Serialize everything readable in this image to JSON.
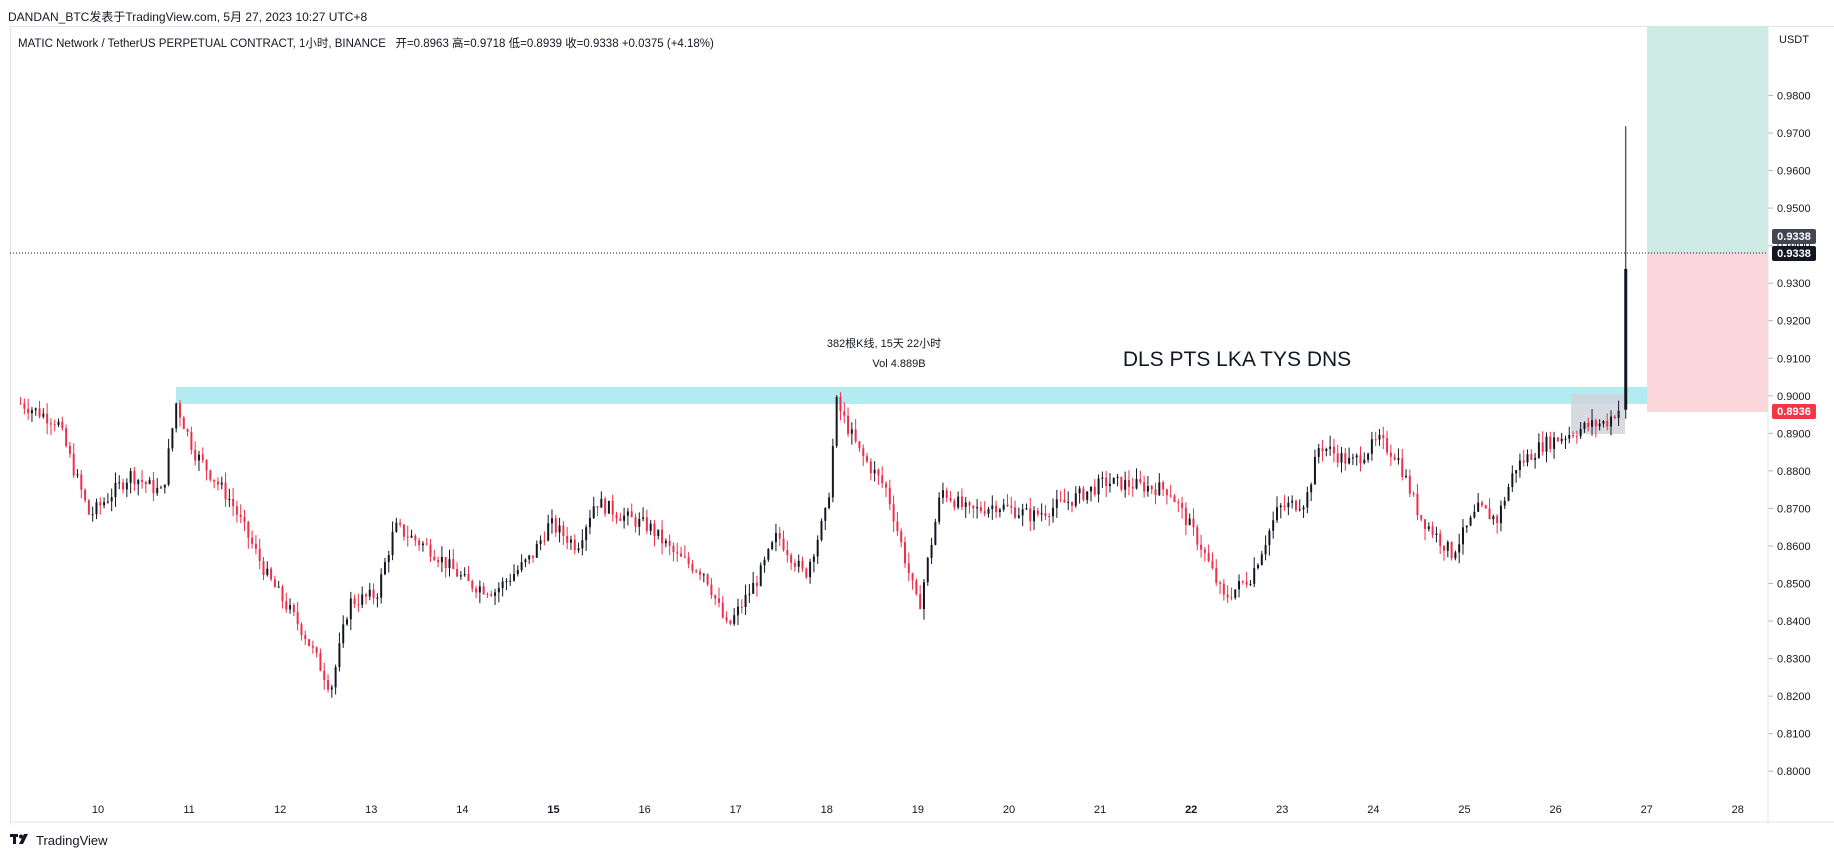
{
  "header": {
    "publisher_line": "DANDAN_BTC发表于TradingView.com, 5月 27, 2023 10:27 UTC+8"
  },
  "legend": {
    "symbol_text": "MATIC Network / TetherUS PERPETUAL CONTRACT, 1小时, BINANCE",
    "ohlc_text": "开=0.8963  高=0.9718  低=0.8939  收=0.9338  +0.0375 (+4.18%)"
  },
  "price_axis": {
    "unit": "USDT",
    "ticks": [
      "0.9800",
      "0.9700",
      "0.9600",
      "0.9500",
      "0.9400",
      "0.9300",
      "0.9200",
      "0.9100",
      "0.9000",
      "0.8900",
      "0.8800",
      "0.8700",
      "0.8600",
      "0.8500",
      "0.8400",
      "0.8300",
      "0.8200",
      "0.8100",
      "0.8000"
    ],
    "last_price_label": "0.9338",
    "last_price_label_2": "0.9338",
    "stop_label": "0.8936"
  },
  "time_axis": {
    "ticks": [
      "10",
      "11",
      "12",
      "13",
      "14",
      "15",
      "16",
      "17",
      "18",
      "19",
      "20",
      "21",
      "22",
      "23",
      "24",
      "25",
      "26",
      "27",
      "28"
    ],
    "bold_ticks": [
      "15",
      "22"
    ]
  },
  "annotations": {
    "range_measure_line1": "382根K线, 15天 22小时",
    "range_measure_line2": "Vol 4.889B",
    "big_text": "DLS PTS LKA TYS DNS"
  },
  "footer": {
    "brand": "TradingView"
  },
  "colors": {
    "up": "#131722",
    "down": "#ef2f4a",
    "resistance_band": "#b2ebf2",
    "target_zone": "#cdeae5",
    "stop_zone": "#fbd6da",
    "consolidation_box": "#d1d4dc",
    "last_price_bg": "#131722",
    "stop_label_bg": "#f23645"
  },
  "chart_data": {
    "type": "candlestick",
    "symbol": "MATIC Network / TetherUS PERPETUAL CONTRACT",
    "interval": "1小时",
    "ylim": [
      0.795,
      0.9985
    ],
    "last_price": 0.9338,
    "ohlc_last": {
      "open": 0.8963,
      "high": 0.9718,
      "low": 0.8939,
      "close": 0.9338
    },
    "resistance_band": [
      0.8955,
      0.8995
    ],
    "long_position": {
      "entry": 0.9338,
      "target": 0.9985,
      "stop": 0.8936
    },
    "path": [
      {
        "day": 9.2,
        "price": 0.898
      },
      {
        "day": 9.6,
        "price": 0.893
      },
      {
        "day": 9.95,
        "price": 0.868
      },
      {
        "day": 10.4,
        "price": 0.879
      },
      {
        "day": 10.75,
        "price": 0.874
      },
      {
        "day": 10.9,
        "price": 0.898
      },
      {
        "day": 11.1,
        "price": 0.885
      },
      {
        "day": 11.5,
        "price": 0.872
      },
      {
        "day": 11.9,
        "price": 0.852
      },
      {
        "day": 12.3,
        "price": 0.837
      },
      {
        "day": 12.6,
        "price": 0.822
      },
      {
        "day": 12.8,
        "price": 0.845
      },
      {
        "day": 13.1,
        "price": 0.847
      },
      {
        "day": 13.3,
        "price": 0.865
      },
      {
        "day": 13.7,
        "price": 0.859
      },
      {
        "day": 14.1,
        "price": 0.85
      },
      {
        "day": 14.4,
        "price": 0.848
      },
      {
        "day": 14.8,
        "price": 0.857
      },
      {
        "day": 15.0,
        "price": 0.866
      },
      {
        "day": 15.3,
        "price": 0.86
      },
      {
        "day": 15.5,
        "price": 0.872
      },
      {
        "day": 15.8,
        "price": 0.868
      },
      {
        "day": 16.1,
        "price": 0.865
      },
      {
        "day": 16.4,
        "price": 0.857
      },
      {
        "day": 16.7,
        "price": 0.853
      },
      {
        "day": 16.95,
        "price": 0.838
      },
      {
        "day": 17.3,
        "price": 0.852
      },
      {
        "day": 17.5,
        "price": 0.863
      },
      {
        "day": 17.8,
        "price": 0.852
      },
      {
        "day": 18.05,
        "price": 0.87
      },
      {
        "day": 18.15,
        "price": 0.898
      },
      {
        "day": 18.4,
        "price": 0.885
      },
      {
        "day": 18.7,
        "price": 0.875
      },
      {
        "day": 19.05,
        "price": 0.843
      },
      {
        "day": 19.3,
        "price": 0.875
      },
      {
        "day": 19.6,
        "price": 0.869
      },
      {
        "day": 19.9,
        "price": 0.871
      },
      {
        "day": 20.3,
        "price": 0.868
      },
      {
        "day": 20.7,
        "price": 0.872
      },
      {
        "day": 21.1,
        "price": 0.877
      },
      {
        "day": 21.5,
        "price": 0.876
      },
      {
        "day": 21.8,
        "price": 0.875
      },
      {
        "day": 22.15,
        "price": 0.86
      },
      {
        "day": 22.4,
        "price": 0.846
      },
      {
        "day": 22.7,
        "price": 0.852
      },
      {
        "day": 23.0,
        "price": 0.87
      },
      {
        "day": 23.3,
        "price": 0.872
      },
      {
        "day": 23.45,
        "price": 0.887
      },
      {
        "day": 23.8,
        "price": 0.882
      },
      {
        "day": 24.1,
        "price": 0.888
      },
      {
        "day": 24.3,
        "price": 0.884
      },
      {
        "day": 24.55,
        "price": 0.868
      },
      {
        "day": 24.9,
        "price": 0.858
      },
      {
        "day": 25.2,
        "price": 0.87
      },
      {
        "day": 25.4,
        "price": 0.867
      },
      {
        "day": 25.6,
        "price": 0.881
      },
      {
        "day": 25.9,
        "price": 0.887
      },
      {
        "day": 26.2,
        "price": 0.89
      },
      {
        "day": 26.4,
        "price": 0.892
      },
      {
        "day": 26.6,
        "price": 0.893
      },
      {
        "day": 26.72,
        "price": 0.8963
      }
    ]
  }
}
